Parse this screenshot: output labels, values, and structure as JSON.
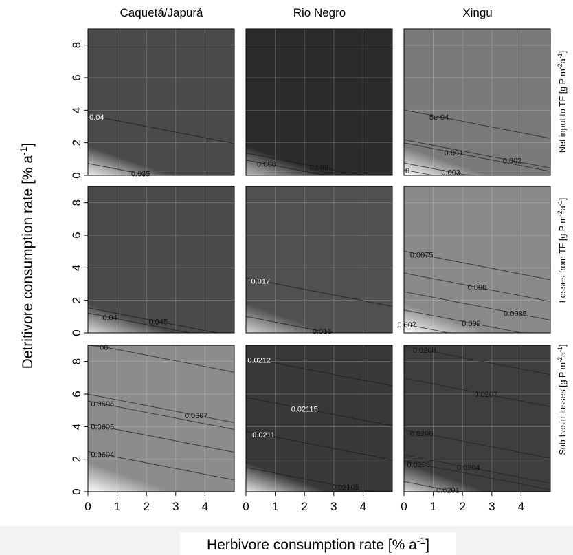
{
  "chart_data": {
    "type": "contour",
    "xlabel": "Herbivore consumption rate [% a",
    "xlabel_sup": "-1",
    "xlabel_end": "]",
    "ylabel": "Detritivore consumption rate [% a",
    "ylabel_sup": "-1",
    "ylabel_end": "]",
    "xlim": [
      0,
      5
    ],
    "ylim": [
      0,
      9
    ],
    "x_ticks": [
      "0",
      "1",
      "2",
      "3",
      "4"
    ],
    "y_ticks": [
      "0",
      "2",
      "4",
      "6",
      "8"
    ],
    "columns": [
      "Caquetá/Japurá",
      "Rio Negro",
      "Xingu"
    ],
    "rows": [
      {
        "label": "Net input to TF",
        "unit_pre": "[g P m",
        "unit_sup1": "-2",
        "unit_mid": "a",
        "unit_sup2": "-1",
        "unit_end": "]"
      },
      {
        "label": "Losses from TF",
        "unit_pre": "[g P m",
        "unit_sup1": "-2",
        "unit_mid": "a",
        "unit_sup2": "-1",
        "unit_end": "]"
      },
      {
        "label": "Sub-basin losses",
        "unit_pre": "[g P m",
        "unit_sup1": "-2",
        "unit_mid": "a",
        "unit_sup2": "-1",
        "unit_end": "]"
      }
    ],
    "panels": [
      {
        "row": 0,
        "col": 0,
        "shade_low": "#f2f2f2",
        "shade_high": "#4a4a4a",
        "labels": [
          {
            "text": "0.04",
            "x": 0.3,
            "y": 3.6
          },
          {
            "text": "0.035",
            "x": 1.8,
            "y": 0.1
          }
        ]
      },
      {
        "row": 0,
        "col": 1,
        "shade_low": "#bdbdbd",
        "shade_high": "#2b2b2b",
        "labels": [
          {
            "text": "0.008",
            "x": 0.7,
            "y": 0.7
          },
          {
            "text": "0.009",
            "x": 2.5,
            "y": 0.5
          }
        ]
      },
      {
        "row": 0,
        "col": 2,
        "shade_low": "#ffffff",
        "shade_high": "#7a7a7a",
        "labels": [
          {
            "text": "5e-04",
            "x": 1.2,
            "y": 3.6
          },
          {
            "text": "0.001",
            "x": 1.7,
            "y": 1.4
          },
          {
            "text": "0.002",
            "x": 3.7,
            "y": 0.9
          },
          {
            "text": "0.003",
            "x": 1.6,
            "y": 0.2
          },
          {
            "text": "0",
            "x": 0.12,
            "y": 0.3
          }
        ]
      },
      {
        "row": 1,
        "col": 0,
        "shade_low": "#e0e0e0",
        "shade_high": "#4a4a4a",
        "labels": [
          {
            "text": "0.04",
            "x": 0.75,
            "y": 0.95
          },
          {
            "text": "0.045",
            "x": 2.4,
            "y": 0.7
          }
        ]
      },
      {
        "row": 1,
        "col": 1,
        "shade_low": "#d8d8d8",
        "shade_high": "#505050",
        "labels": [
          {
            "text": "0.017",
            "x": 0.5,
            "y": 3.2
          },
          {
            "text": "0.016",
            "x": 2.6,
            "y": 0.1
          }
        ]
      },
      {
        "row": 1,
        "col": 2,
        "shade_low": "#ffffff",
        "shade_high": "#8a8a8a",
        "labels": [
          {
            "text": "0.0075",
            "x": 0.6,
            "y": 4.8
          },
          {
            "text": "0.008",
            "x": 2.5,
            "y": 2.8
          },
          {
            "text": "0.0085",
            "x": 3.8,
            "y": 1.2
          },
          {
            "text": "0.009",
            "x": 2.3,
            "y": 0.6
          },
          {
            "text": "0.007",
            "x": 0.1,
            "y": 0.5
          }
        ]
      },
      {
        "row": 2,
        "col": 0,
        "shade_low": "#ffffff",
        "shade_high": "#8c8c8c",
        "labels": [
          {
            "text": "0.0606",
            "x": 0.5,
            "y": 5.4
          },
          {
            "text": "0.0607",
            "x": 3.7,
            "y": 4.7
          },
          {
            "text": "0.0605",
            "x": 0.5,
            "y": 4.0
          },
          {
            "text": "0.0604",
            "x": 0.5,
            "y": 2.3
          },
          {
            "text": "08",
            "x": 0.55,
            "y": 8.9
          }
        ]
      },
      {
        "row": 2,
        "col": 1,
        "shade_low": "#e8e8e8",
        "shade_high": "#383838",
        "labels": [
          {
            "text": "0.0212",
            "x": 0.45,
            "y": 8.1
          },
          {
            "text": "0.02115",
            "x": 2.0,
            "y": 5.1
          },
          {
            "text": "0.0211",
            "x": 0.6,
            "y": 3.5
          },
          {
            "text": "0.02105",
            "x": 3.4,
            "y": 0.3
          }
        ]
      },
      {
        "row": 2,
        "col": 2,
        "shade_low": "#d8d8d8",
        "shade_high": "#3e3e3e",
        "labels": [
          {
            "text": "0.0208",
            "x": 0.7,
            "y": 8.7
          },
          {
            "text": "0.0207",
            "x": 2.8,
            "y": 6.0
          },
          {
            "text": "0.0206",
            "x": 0.6,
            "y": 3.6
          },
          {
            "text": "0.0205",
            "x": 0.5,
            "y": 1.7
          },
          {
            "text": "0.0204",
            "x": 2.2,
            "y": 1.5
          },
          {
            "text": "0.0201",
            "x": 1.5,
            "y": 0.1
          }
        ]
      }
    ]
  }
}
